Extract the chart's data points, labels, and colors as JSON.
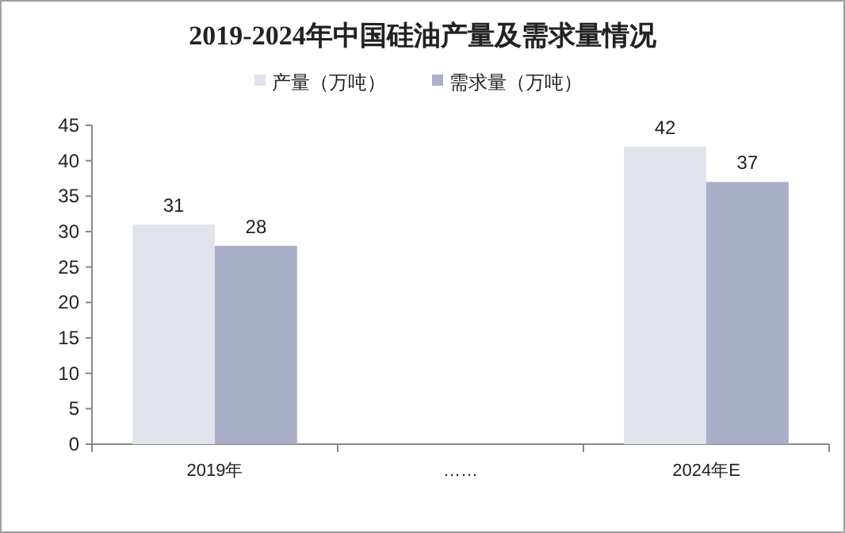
{
  "chart_data": {
    "type": "bar",
    "title": "2019-2024年中国硅油产量及需求量情况",
    "categories": [
      "2019年",
      "……",
      "2024年E"
    ],
    "series": [
      {
        "name": "产量（万吨）",
        "color": "#e0e3ec",
        "values": [
          31,
          null,
          42
        ]
      },
      {
        "name": "需求量（万吨）",
        "color": "#a9afc8",
        "values": [
          28,
          null,
          37
        ]
      }
    ],
    "ylim": [
      0,
      45
    ],
    "yticks": [
      0,
      5,
      10,
      15,
      20,
      25,
      30,
      35,
      40,
      45
    ],
    "data_labels": true,
    "legend": "top"
  }
}
